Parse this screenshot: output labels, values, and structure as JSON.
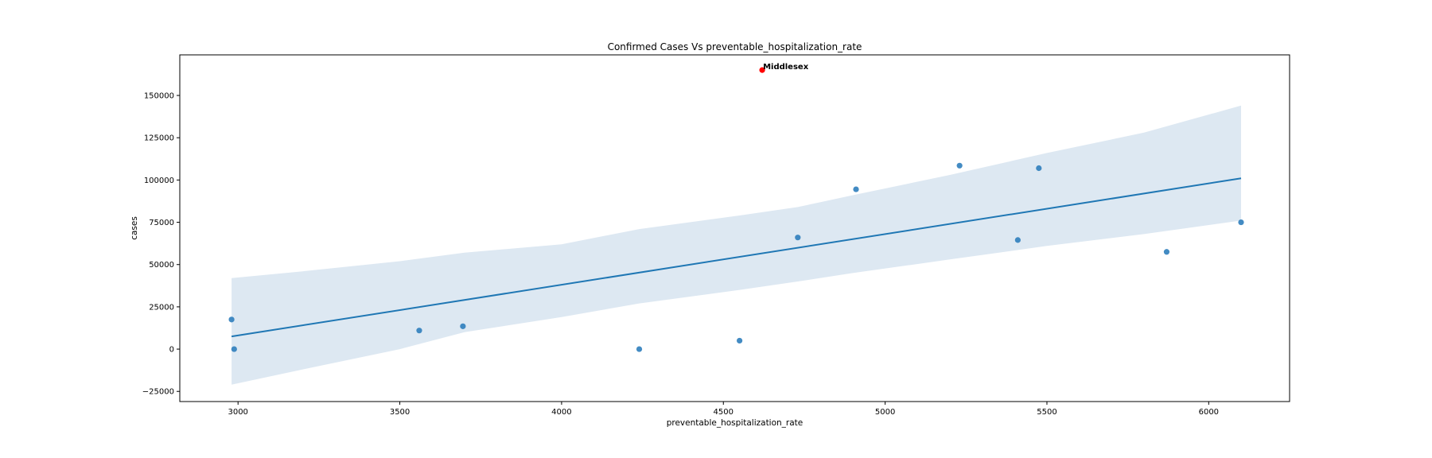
{
  "chart_data": {
    "type": "scatter",
    "title": "Confirmed Cases Vs preventable_hospitalization_rate",
    "xlabel": "preventable_hospitalization_rate",
    "ylabel": "cases",
    "xlim": [
      2820,
      6250
    ],
    "ylim": [
      -31000,
      174000
    ],
    "xticks": [
      3000,
      3500,
      4000,
      4500,
      5000,
      5500,
      6000
    ],
    "yticks": [
      -25000,
      0,
      25000,
      50000,
      75000,
      100000,
      125000,
      150000
    ],
    "grid": false,
    "colors": {
      "points": "#2f7ebc",
      "highlight": "#ff0000",
      "line": "#1f77b4",
      "band": "#dde8f2"
    },
    "points": [
      {
        "x": 2980,
        "y": 17500
      },
      {
        "x": 2988,
        "y": 0
      },
      {
        "x": 3560,
        "y": 11000
      },
      {
        "x": 3695,
        "y": 13500
      },
      {
        "x": 4240,
        "y": 0
      },
      {
        "x": 4550,
        "y": 5000
      },
      {
        "x": 4730,
        "y": 66000
      },
      {
        "x": 4910,
        "y": 94500
      },
      {
        "x": 5230,
        "y": 108500
      },
      {
        "x": 5410,
        "y": 64500
      },
      {
        "x": 5475,
        "y": 107000
      },
      {
        "x": 5870,
        "y": 57500
      },
      {
        "x": 6100,
        "y": 75000
      }
    ],
    "highlight": {
      "x": 4620,
      "y": 165000,
      "label": "Middlesex"
    },
    "regression": {
      "x": [
        2980,
        6100
      ],
      "y": [
        7500,
        101000
      ]
    },
    "confidence_band": {
      "x": [
        2980,
        3200,
        3500,
        3700,
        4000,
        4240,
        4550,
        4730,
        4900,
        5200,
        5500,
        5800,
        6100
      ],
      "upper": [
        42000,
        46000,
        52000,
        57000,
        62000,
        71000,
        79000,
        84000,
        91000,
        103000,
        116000,
        128000,
        144000
      ],
      "lower": [
        -21000,
        -12000,
        0,
        10000,
        19000,
        27000,
        35000,
        40000,
        45000,
        53000,
        61000,
        68000,
        76000
      ]
    }
  }
}
